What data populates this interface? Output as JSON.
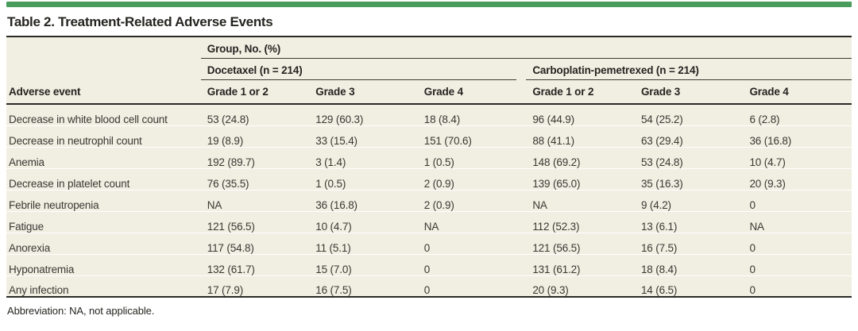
{
  "colors": {
    "accent_green": "#4a9c5c",
    "table_background": "#f1eee2",
    "rule": "#2b2a25"
  },
  "table": {
    "title": "Table 2. Treatment-Related Adverse Events",
    "group_header": "Group, No. (%)",
    "subgroups": [
      {
        "label": "Docetaxel (n = 214)"
      },
      {
        "label": "Carboplatin-pemetrexed (n = 214)"
      }
    ],
    "row_header_label": "Adverse event",
    "column_headers": [
      "Grade 1 or 2",
      "Grade 3",
      "Grade 4",
      "Grade 1 or 2",
      "Grade 3",
      "Grade 4"
    ],
    "rows": [
      {
        "label": "Decrease in white blood cell count",
        "values": [
          "53 (24.8)",
          "129 (60.3)",
          "18 (8.4)",
          "96 (44.9)",
          "54 (25.2)",
          "6 (2.8)"
        ]
      },
      {
        "label": "Decrease in neutrophil count",
        "values": [
          "19 (8.9)",
          "33 (15.4)",
          "151 (70.6)",
          "88 (41.1)",
          "63 (29.4)",
          "36 (16.8)"
        ]
      },
      {
        "label": "Anemia",
        "values": [
          "192 (89.7)",
          "3 (1.4)",
          "1 (0.5)",
          "148 (69.2)",
          "53 (24.8)",
          "10 (4.7)"
        ]
      },
      {
        "label": "Decrease in platelet count",
        "values": [
          "76 (35.5)",
          "1 (0.5)",
          "2 (0.9)",
          "139 (65.0)",
          "35 (16.3)",
          "20 (9.3)"
        ]
      },
      {
        "label": "Febrile neutropenia",
        "values": [
          "NA",
          "36 (16.8)",
          "2 (0.9)",
          "NA",
          "9 (4.2)",
          "0"
        ]
      },
      {
        "label": "Fatigue",
        "values": [
          "121 (56.5)",
          "10 (4.7)",
          "NA",
          "112 (52.3)",
          "13 (6.1)",
          "NA"
        ]
      },
      {
        "label": "Anorexia",
        "values": [
          "117 (54.8)",
          "11 (5.1)",
          "0",
          "121 (56.5)",
          "16 (7.5)",
          "0"
        ]
      },
      {
        "label": "Hyponatremia",
        "values": [
          "132 (61.7)",
          "15 (7.0)",
          "0",
          "131 (61.2)",
          "18 (8.4)",
          "0"
        ]
      },
      {
        "label": "Any infection",
        "values": [
          "17 (7.9)",
          "16 (7.5)",
          "0",
          "20 (9.3)",
          "14 (6.5)",
          "0"
        ]
      }
    ],
    "footnote": "Abbreviation: NA, not applicable."
  }
}
